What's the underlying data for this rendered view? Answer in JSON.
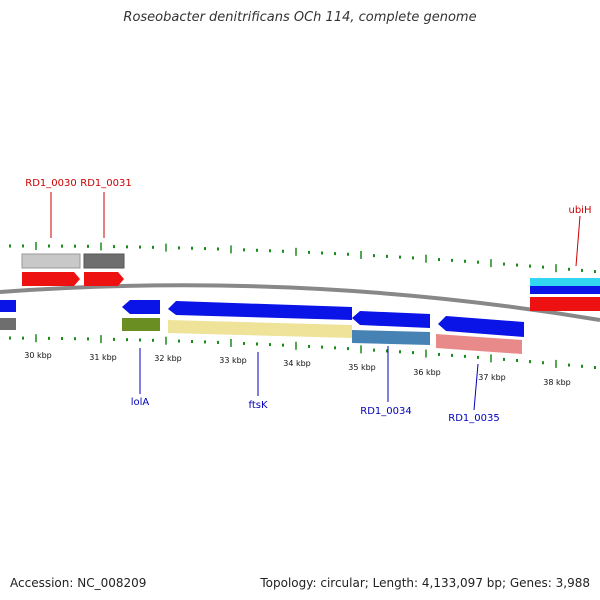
{
  "title": "Roseobacter denitrificans OCh 114, complete genome",
  "footer": {
    "accession": "Accession: NC_008209",
    "topology": "Topology: circular; Length: 4,133,097 bp; Genes: 3,988"
  },
  "colors": {
    "backbone": "#888888",
    "tick": "#1a8a1a",
    "label_top": "#cc0000",
    "label_bottom": "#0000bb",
    "gene_blue": "#0a14e6",
    "gene_red": "#ee1111",
    "gene_pale": "#efe39a",
    "gene_olive": "#6b8e23",
    "gene_steel": "#4682b4",
    "gene_pink": "#e98a8a",
    "gene_grey": "#c8c8c8",
    "gene_darkgrey": "#6e6e6e",
    "gene_cyan": "#33d6f0"
  },
  "scale_labels": [
    "30 kbp",
    "31 kbp",
    "32 kbp",
    "33 kbp",
    "34 kbp",
    "35 kbp",
    "36 kbp",
    "37 kbp",
    "38 kbp"
  ],
  "gene_labels_top": [
    "RD1_0030",
    "RD1_0031",
    "ubiH"
  ],
  "gene_labels_bottom": [
    "lolA",
    "ftsK",
    "RD1_0034",
    "RD1_0035"
  ]
}
